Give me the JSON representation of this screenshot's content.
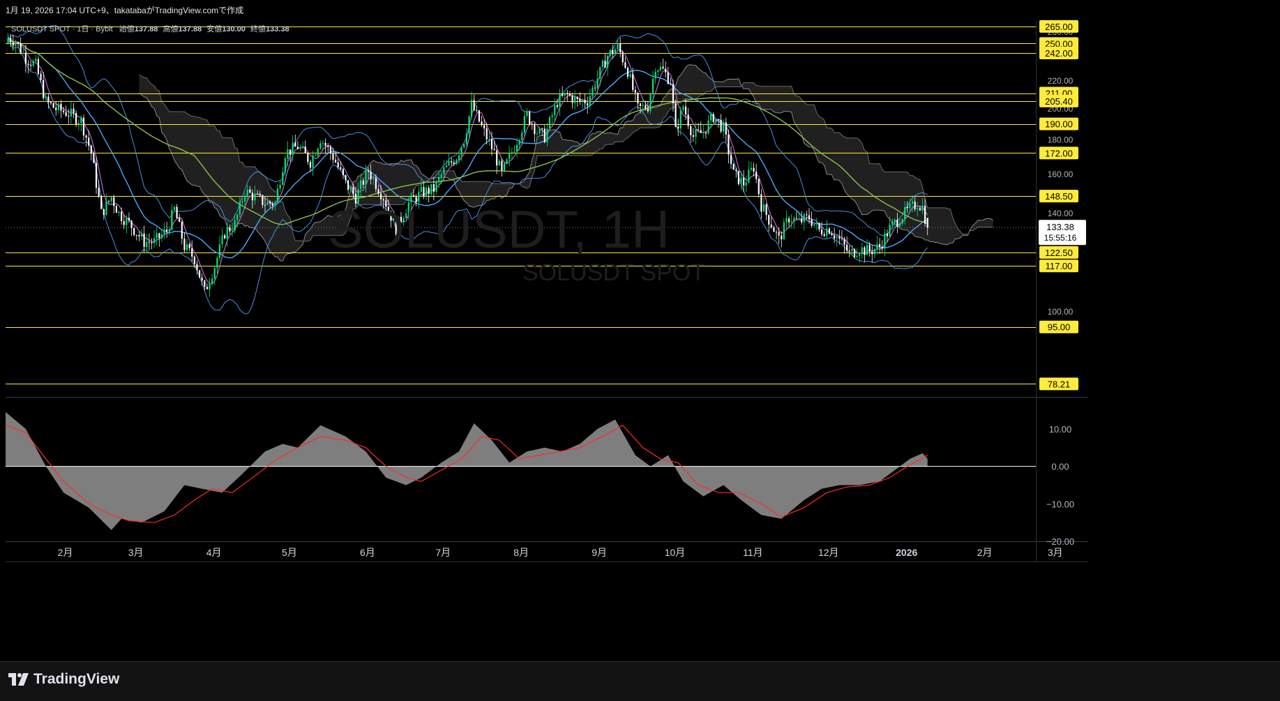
{
  "caption": "1月 19, 2026 17:04 UTC+9、takatabaがTradingView.comで作成",
  "header": {
    "symbol": "SOLUSDT SPOT",
    "interval": "1日",
    "exchange": "Bybit",
    "open_label": "始値",
    "open": "137.88",
    "high_label": "高値",
    "high": "137.88",
    "low_label": "安値",
    "low": "130.00",
    "close_label": "終値",
    "close": "133.38"
  },
  "watermark": {
    "line1": "SOLUSDT, 1H",
    "line2": "SOLUSDT SPOT"
  },
  "brand": "TradingView",
  "colors": {
    "background": "#000000",
    "up": "#00e676",
    "down": "#ffffff",
    "level": "#ffeb3b",
    "band": "#4a90e2",
    "ma_fast": "#ba68c8",
    "ma_mid": "#4aa8ff",
    "ma_slow": "#8bc34a",
    "cloud": "#3a3a3a",
    "macd_signal": "#ff2a2a",
    "macd_hist": "#8c8c8c"
  },
  "chart_data": [
    {
      "type": "candlestick",
      "title": "SOLUSDT SPOT · 1日 · Bybit",
      "y_scale": "log",
      "ylim": [
        75,
        270
      ],
      "x_range": [
        "2025-01-18",
        "2026-03-03"
      ],
      "x_tick_labels": [
        "2月",
        "3月",
        "4月",
        "5月",
        "6月",
        "7月",
        "8月",
        "9月",
        "10月",
        "11月",
        "12月",
        "2026",
        "2月",
        "3月"
      ],
      "y_tick_labels": [
        "260.00",
        "220.00",
        "200.00",
        "180.00",
        "160.00",
        "140.00",
        "100.00"
      ],
      "horizontal_levels": [
        "265.00",
        "250.00",
        "242.00",
        "211.00",
        "205.40",
        "190.00",
        "172.00",
        "148.50",
        "122.50",
        "117.00",
        "95.00",
        "78.21"
      ],
      "last_price": "133.38",
      "countdown": "15:55:16",
      "price_path": [
        [
          "2025-01-19",
          255
        ],
        [
          "2025-01-22",
          252
        ],
        [
          "2025-01-26",
          238
        ],
        [
          "2025-01-30",
          232
        ],
        [
          "2025-02-03",
          205
        ],
        [
          "2025-02-07",
          200
        ],
        [
          "2025-02-12",
          197
        ],
        [
          "2025-02-17",
          192
        ],
        [
          "2025-02-21",
          172
        ],
        [
          "2025-02-25",
          140
        ],
        [
          "2025-03-01",
          148
        ],
        [
          "2025-03-04",
          140
        ],
        [
          "2025-03-09",
          134
        ],
        [
          "2025-03-14",
          127
        ],
        [
          "2025-03-18",
          127
        ],
        [
          "2025-03-23",
          132
        ],
        [
          "2025-03-26",
          142
        ],
        [
          "2025-03-30",
          125
        ],
        [
          "2025-04-03",
          120
        ],
        [
          "2025-04-07",
          107
        ],
        [
          "2025-04-11",
          117
        ],
        [
          "2025-04-15",
          131
        ],
        [
          "2025-04-19",
          135
        ],
        [
          "2025-04-23",
          151
        ],
        [
          "2025-04-27",
          148
        ],
        [
          "2025-05-01",
          145
        ],
        [
          "2025-05-05",
          145
        ],
        [
          "2025-05-09",
          172
        ],
        [
          "2025-05-14",
          176
        ],
        [
          "2025-05-19",
          167
        ],
        [
          "2025-05-23",
          181
        ],
        [
          "2025-05-28",
          170
        ],
        [
          "2025-06-02",
          155
        ],
        [
          "2025-06-06",
          148
        ],
        [
          "2025-06-11",
          162
        ],
        [
          "2025-06-17",
          148
        ],
        [
          "2025-06-22",
          133
        ],
        [
          "2025-06-27",
          145
        ],
        [
          "2025-07-02",
          150
        ],
        [
          "2025-07-07",
          152
        ],
        [
          "2025-07-11",
          162
        ],
        [
          "2025-07-16",
          170
        ],
        [
          "2025-07-19",
          180
        ],
        [
          "2025-07-22",
          203
        ],
        [
          "2025-07-26",
          188
        ],
        [
          "2025-07-31",
          172
        ],
        [
          "2025-08-03",
          160
        ],
        [
          "2025-08-08",
          176
        ],
        [
          "2025-08-13",
          196
        ],
        [
          "2025-08-17",
          185
        ],
        [
          "2025-08-20",
          182
        ],
        [
          "2025-08-25",
          205
        ],
        [
          "2025-08-29",
          210
        ],
        [
          "2025-09-02",
          205
        ],
        [
          "2025-09-06",
          206
        ],
        [
          "2025-09-10",
          222
        ],
        [
          "2025-09-14",
          240
        ],
        [
          "2025-09-18",
          247
        ],
        [
          "2025-09-22",
          228
        ],
        [
          "2025-09-26",
          200
        ],
        [
          "2025-09-30",
          202
        ],
        [
          "2025-10-03",
          232
        ],
        [
          "2025-10-06",
          228
        ],
        [
          "2025-10-09",
          220
        ],
        [
          "2025-10-11",
          185
        ],
        [
          "2025-10-14",
          202
        ],
        [
          "2025-10-18",
          182
        ],
        [
          "2025-10-22",
          185
        ],
        [
          "2025-10-26",
          195
        ],
        [
          "2025-10-30",
          187
        ],
        [
          "2025-11-03",
          160
        ],
        [
          "2025-11-07",
          155
        ],
        [
          "2025-11-11",
          164
        ],
        [
          "2025-11-14",
          144
        ],
        [
          "2025-11-18",
          135
        ],
        [
          "2025-11-21",
          128
        ],
        [
          "2025-11-25",
          138
        ],
        [
          "2025-11-29",
          136
        ],
        [
          "2025-12-03",
          138
        ],
        [
          "2025-12-07",
          132
        ],
        [
          "2025-12-11",
          133
        ],
        [
          "2025-12-15",
          128
        ],
        [
          "2025-12-19",
          122
        ],
        [
          "2025-12-23",
          124
        ],
        [
          "2025-12-27",
          123
        ],
        [
          "2025-12-31",
          125
        ],
        [
          "2026-01-04",
          133
        ],
        [
          "2026-01-08",
          138
        ],
        [
          "2026-01-12",
          142
        ],
        [
          "2026-01-15",
          145
        ],
        [
          "2026-01-17",
          143
        ],
        [
          "2026-01-19",
          133.38
        ]
      ]
    },
    {
      "type": "area",
      "title": "MACD",
      "ylim": [
        -20,
        18
      ],
      "y_tick_labels": [
        "10.00",
        "0.00",
        "−10.00",
        "−20.00"
      ],
      "histogram": [
        [
          "2025-01-18",
          14.5
        ],
        [
          "2025-01-26",
          10
        ],
        [
          "2025-02-03",
          0
        ],
        [
          "2025-02-10",
          -7
        ],
        [
          "2025-02-20",
          -11
        ],
        [
          "2025-03-01",
          -17
        ],
        [
          "2025-03-05",
          -14
        ],
        [
          "2025-03-13",
          -15
        ],
        [
          "2025-03-22",
          -12
        ],
        [
          "2025-03-30",
          -5
        ],
        [
          "2025-04-06",
          -6
        ],
        [
          "2025-04-14",
          -7
        ],
        [
          "2025-04-22",
          -2
        ],
        [
          "2025-05-01",
          4
        ],
        [
          "2025-05-08",
          6
        ],
        [
          "2025-05-14",
          5
        ],
        [
          "2025-05-23",
          11
        ],
        [
          "2025-06-02",
          8
        ],
        [
          "2025-06-10",
          4
        ],
        [
          "2025-06-18",
          -3
        ],
        [
          "2025-06-26",
          -5
        ],
        [
          "2025-07-02",
          -3
        ],
        [
          "2025-07-10",
          1
        ],
        [
          "2025-07-17",
          4
        ],
        [
          "2025-07-23",
          11.5
        ],
        [
          "2025-07-30",
          7
        ],
        [
          "2025-08-06",
          1
        ],
        [
          "2025-08-13",
          4
        ],
        [
          "2025-08-20",
          5
        ],
        [
          "2025-08-27",
          4
        ],
        [
          "2025-09-03",
          6
        ],
        [
          "2025-09-10",
          10
        ],
        [
          "2025-09-17",
          12.5
        ],
        [
          "2025-09-25",
          3
        ],
        [
          "2025-10-01",
          0
        ],
        [
          "2025-10-08",
          3
        ],
        [
          "2025-10-14",
          -4
        ],
        [
          "2025-10-22",
          -8
        ],
        [
          "2025-10-30",
          -5
        ],
        [
          "2025-11-06",
          -9
        ],
        [
          "2025-11-14",
          -13
        ],
        [
          "2025-11-22",
          -14
        ],
        [
          "2025-12-01",
          -9
        ],
        [
          "2025-12-08",
          -6
        ],
        [
          "2025-12-15",
          -5
        ],
        [
          "2025-12-23",
          -5
        ],
        [
          "2025-12-31",
          -4
        ],
        [
          "2026-01-06",
          -1
        ],
        [
          "2026-01-12",
          2
        ],
        [
          "2026-01-17",
          3.5
        ],
        [
          "2026-01-19",
          2
        ]
      ],
      "signal": [
        [
          "2025-01-18",
          11
        ],
        [
          "2025-01-26",
          9
        ],
        [
          "2025-02-03",
          2
        ],
        [
          "2025-02-10",
          -4
        ],
        [
          "2025-02-20",
          -10
        ],
        [
          "2025-03-01",
          -13
        ],
        [
          "2025-03-08",
          -14.5
        ],
        [
          "2025-03-18",
          -15
        ],
        [
          "2025-03-26",
          -13
        ],
        [
          "2025-04-03",
          -9
        ],
        [
          "2025-04-10",
          -6
        ],
        [
          "2025-04-18",
          -7
        ],
        [
          "2025-04-26",
          -3
        ],
        [
          "2025-05-06",
          2
        ],
        [
          "2025-05-14",
          5
        ],
        [
          "2025-05-23",
          8
        ],
        [
          "2025-06-02",
          7
        ],
        [
          "2025-06-10",
          5
        ],
        [
          "2025-06-18",
          0
        ],
        [
          "2025-06-26",
          -3
        ],
        [
          "2025-07-02",
          -4
        ],
        [
          "2025-07-10",
          -1
        ],
        [
          "2025-07-18",
          2
        ],
        [
          "2025-07-26",
          8
        ],
        [
          "2025-08-02",
          7
        ],
        [
          "2025-08-10",
          2
        ],
        [
          "2025-08-18",
          3
        ],
        [
          "2025-08-26",
          4
        ],
        [
          "2025-09-03",
          5
        ],
        [
          "2025-09-12",
          8
        ],
        [
          "2025-09-20",
          11
        ],
        [
          "2025-09-28",
          5
        ],
        [
          "2025-10-05",
          2
        ],
        [
          "2025-10-12",
          1
        ],
        [
          "2025-10-20",
          -5
        ],
        [
          "2025-10-28",
          -7
        ],
        [
          "2025-11-05",
          -7
        ],
        [
          "2025-11-14",
          -10
        ],
        [
          "2025-11-22",
          -13.5
        ],
        [
          "2025-12-01",
          -11
        ],
        [
          "2025-12-10",
          -7
        ],
        [
          "2025-12-18",
          -5.5
        ],
        [
          "2025-12-27",
          -5
        ],
        [
          "2026-01-04",
          -3
        ],
        [
          "2026-01-11",
          0
        ],
        [
          "2026-01-19",
          3
        ]
      ]
    }
  ]
}
